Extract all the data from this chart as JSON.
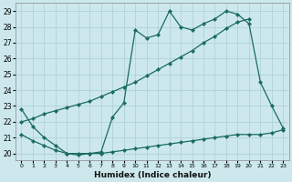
{
  "xlabel": "Humidex (Indice chaleur)",
  "bg_color": "#cce8ec",
  "line_color": "#1a6b62",
  "grid_color": "#aacdd4",
  "x_min": -0.5,
  "x_max": 23.5,
  "y_min": 19.6,
  "y_max": 29.5,
  "y_ticks": [
    20,
    21,
    22,
    23,
    24,
    25,
    26,
    27,
    28,
    29
  ],
  "x_ticks": [
    0,
    1,
    2,
    3,
    4,
    5,
    6,
    7,
    8,
    9,
    10,
    11,
    12,
    13,
    14,
    15,
    16,
    17,
    18,
    19,
    20,
    21,
    22,
    23
  ],
  "line1_x": [
    0,
    1,
    2,
    3,
    4,
    5,
    6,
    7,
    8,
    9,
    10,
    11,
    12,
    13,
    14,
    15,
    16,
    17,
    18,
    19,
    20,
    21,
    22,
    23
  ],
  "line1_y": [
    22.8,
    21.7,
    21.0,
    20.5,
    20.0,
    19.9,
    20.0,
    20.1,
    22.3,
    23.2,
    27.8,
    27.3,
    27.5,
    29.0,
    28.0,
    27.8,
    28.2,
    28.5,
    29.0,
    28.8,
    28.2,
    24.5,
    23.0,
    21.6
  ],
  "line2_x": [
    0,
    1,
    2,
    3,
    4,
    5,
    6,
    7,
    8,
    9,
    10,
    11,
    12,
    13,
    14,
    15,
    16,
    17,
    18,
    19,
    20
  ],
  "line2_y": [
    22.0,
    22.2,
    22.5,
    22.7,
    22.9,
    23.1,
    23.3,
    23.6,
    23.9,
    24.2,
    24.5,
    24.9,
    25.3,
    25.7,
    26.1,
    26.5,
    27.0,
    27.4,
    27.9,
    28.3,
    28.5
  ],
  "line3_x": [
    0,
    1,
    2,
    3,
    4,
    5,
    6,
    7,
    8,
    9,
    10,
    11,
    12,
    13,
    14,
    15,
    16,
    17,
    18,
    19,
    20,
    21,
    22,
    23
  ],
  "line3_y": [
    21.2,
    20.8,
    20.5,
    20.2,
    20.0,
    20.0,
    20.0,
    20.0,
    20.1,
    20.2,
    20.3,
    20.4,
    20.5,
    20.6,
    20.7,
    20.8,
    20.9,
    21.0,
    21.1,
    21.2,
    21.2,
    21.2,
    21.3,
    21.5
  ]
}
